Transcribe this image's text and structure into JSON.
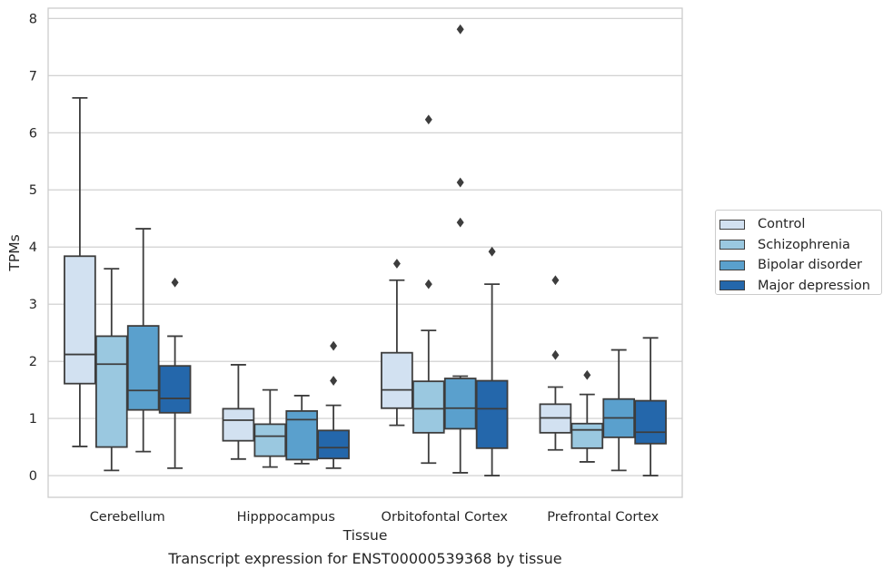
{
  "chart_data": {
    "type": "box",
    "title": "Transcript expression for ENST00000539368 by tissue",
    "xlabel": "Tissue",
    "ylabel": "TPMs",
    "ylim": [
      -0.38,
      8.18
    ],
    "yticks": [
      0,
      1,
      2,
      3,
      4,
      5,
      6,
      7,
      8
    ],
    "grid": "horizontal",
    "legend_position": "right",
    "categories": [
      "Cerebellum",
      "Hipppocampus",
      "Orbitofontal Cortex",
      "Prefrontal Cortex"
    ],
    "series": [
      {
        "name": "Control",
        "color": "#d2e1f1",
        "boxes": [
          {
            "q1": 1.61,
            "median": 2.12,
            "q3": 3.84,
            "whisker_low": 0.51,
            "whisker_high": 6.61,
            "outliers": []
          },
          {
            "q1": 0.61,
            "median": 0.97,
            "q3": 1.17,
            "whisker_low": 0.29,
            "whisker_high": 1.94,
            "outliers": []
          },
          {
            "q1": 1.18,
            "median": 1.5,
            "q3": 2.15,
            "whisker_low": 0.88,
            "whisker_high": 3.42,
            "outliers": [
              3.71
            ]
          },
          {
            "q1": 0.75,
            "median": 1.01,
            "q3": 1.25,
            "whisker_low": 0.45,
            "whisker_high": 1.55,
            "outliers": [
              2.11,
              3.42
            ]
          }
        ]
      },
      {
        "name": "Schizophrenia",
        "color": "#9ac8e0",
        "boxes": [
          {
            "q1": 0.5,
            "median": 1.95,
            "q3": 2.44,
            "whisker_low": 0.09,
            "whisker_high": 3.62,
            "outliers": []
          },
          {
            "q1": 0.34,
            "median": 0.69,
            "q3": 0.9,
            "whisker_low": 0.15,
            "whisker_high": 1.5,
            "outliers": []
          },
          {
            "q1": 0.75,
            "median": 1.17,
            "q3": 1.65,
            "whisker_low": 0.22,
            "whisker_high": 2.54,
            "outliers": [
              3.35,
              6.23
            ]
          },
          {
            "q1": 0.48,
            "median": 0.8,
            "q3": 0.91,
            "whisker_low": 0.24,
            "whisker_high": 1.42,
            "outliers": [
              1.76
            ]
          }
        ]
      },
      {
        "name": "Bipolar disorder",
        "color": "#5aa0cd",
        "boxes": [
          {
            "q1": 1.15,
            "median": 1.49,
            "q3": 2.62,
            "whisker_low": 0.42,
            "whisker_high": 4.32,
            "outliers": []
          },
          {
            "q1": 0.28,
            "median": 0.98,
            "q3": 1.13,
            "whisker_low": 0.21,
            "whisker_high": 1.4,
            "outliers": []
          },
          {
            "q1": 0.82,
            "median": 1.18,
            "q3": 1.7,
            "whisker_low": 0.05,
            "whisker_high": 1.74,
            "outliers": [
              4.43,
              5.13,
              7.81
            ]
          },
          {
            "q1": 0.67,
            "median": 1.01,
            "q3": 1.34,
            "whisker_low": 0.09,
            "whisker_high": 2.2,
            "outliers": []
          }
        ]
      },
      {
        "name": "Major depression",
        "color": "#2467ab",
        "boxes": [
          {
            "q1": 1.1,
            "median": 1.35,
            "q3": 1.92,
            "whisker_low": 0.13,
            "whisker_high": 2.44,
            "outliers": [
              3.38
            ]
          },
          {
            "q1": 0.3,
            "median": 0.49,
            "q3": 0.79,
            "whisker_low": 0.13,
            "whisker_high": 1.23,
            "outliers": [
              1.66,
              2.27
            ]
          },
          {
            "q1": 0.48,
            "median": 1.17,
            "q3": 1.66,
            "whisker_low": 0.0,
            "whisker_high": 3.35,
            "outliers": [
              3.92
            ]
          },
          {
            "q1": 0.56,
            "median": 0.76,
            "q3": 1.31,
            "whisker_low": 0.0,
            "whisker_high": 2.41,
            "outliers": []
          }
        ]
      }
    ]
  }
}
